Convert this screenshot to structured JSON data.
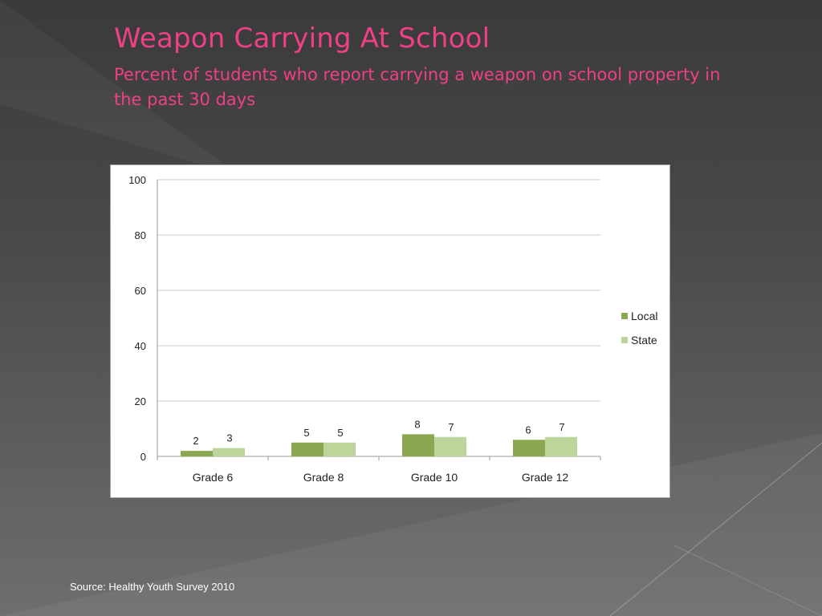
{
  "slide": {
    "title": "Weapon Carrying At School",
    "subtitle": "Percent of students who report carrying a weapon on school property in the past 30 days",
    "source": "Source: Healthy Youth Survey 2010"
  },
  "colors": {
    "background": "#4a4a4a",
    "title": "#ef3f86",
    "local": "#8aa84f",
    "state": "#bcd59a",
    "gridline": "#c8c8c8"
  },
  "chart_data": {
    "type": "bar",
    "categories": [
      "Grade 6",
      "Grade 8",
      "Grade 10",
      "Grade 12"
    ],
    "series": [
      {
        "name": "Local",
        "values": [
          2,
          5,
          8,
          6
        ]
      },
      {
        "name": "State",
        "values": [
          3,
          5,
          7,
          7
        ]
      }
    ],
    "ylim": [
      0,
      100
    ],
    "yticks": [
      0,
      20,
      40,
      60,
      80,
      100
    ],
    "grid": true,
    "legend": "right",
    "data_labels": true
  }
}
